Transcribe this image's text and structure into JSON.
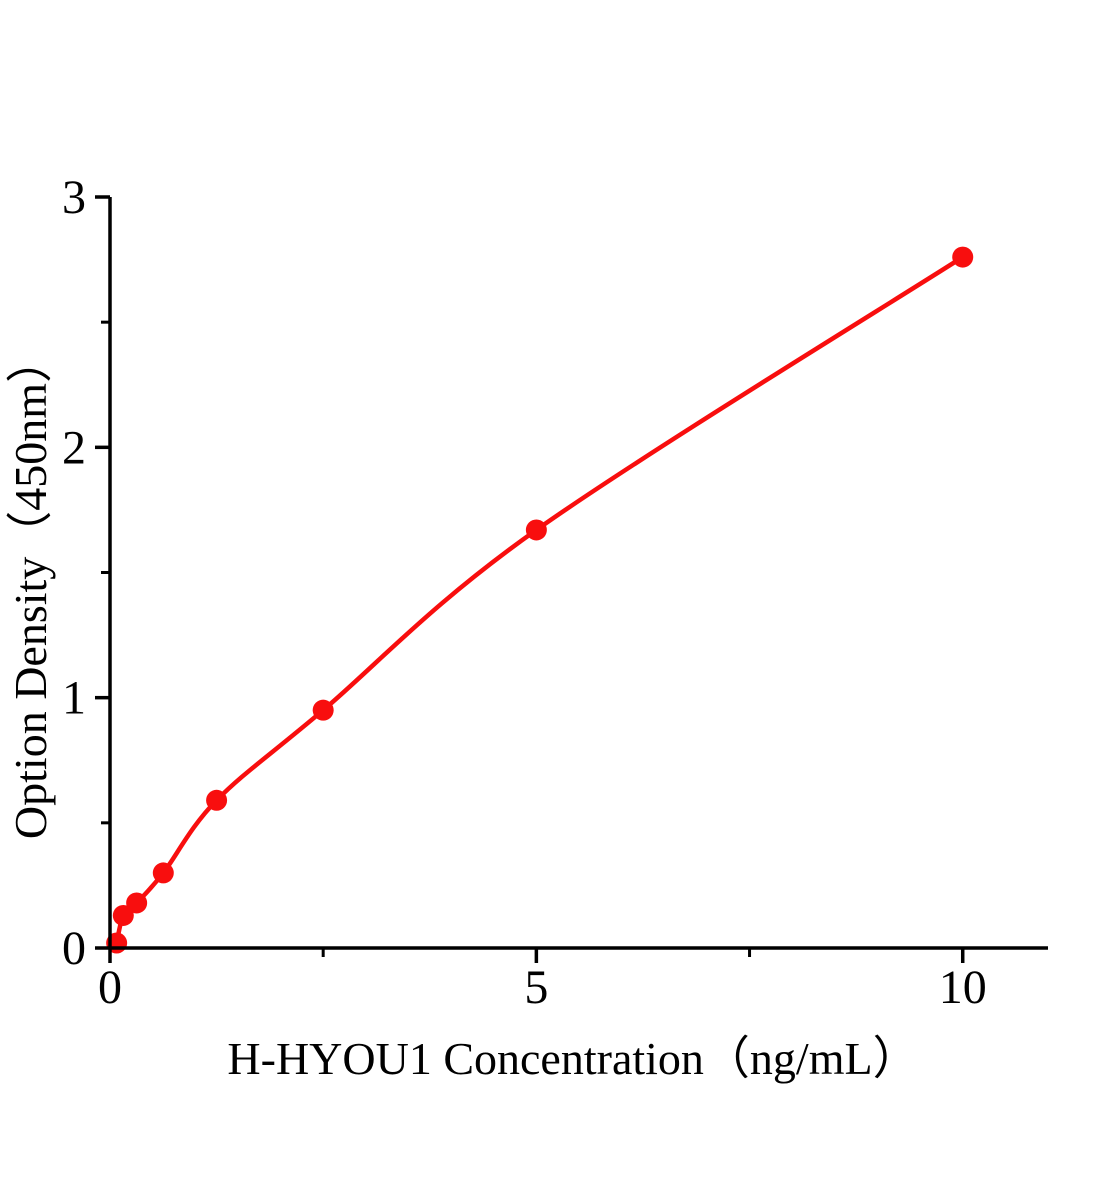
{
  "chart_data": {
    "type": "scatter",
    "subtype": "line-through-points-standard-curve",
    "title": "",
    "xlabel": "H-HYOU1 Concentration（ng/mL）",
    "ylabel": "Option Density（450nm）",
    "x": [
      0.078,
      0.156,
      0.3125,
      0.625,
      1.25,
      2.5,
      5,
      10
    ],
    "y": [
      0.02,
      0.13,
      0.18,
      0.3,
      0.59,
      0.95,
      1.67,
      2.76
    ],
    "xlim": [
      0,
      11
    ],
    "ylim": [
      0,
      3
    ],
    "x_major_ticks": [
      0,
      5,
      10
    ],
    "x_major_tick_labels": [
      "0",
      "5",
      "10"
    ],
    "x_minor_ticks": [
      2.5,
      7.5
    ],
    "y_major_ticks": [
      0,
      1,
      2,
      3
    ],
    "y_major_tick_labels": [
      "0",
      "1",
      "2",
      "3"
    ],
    "y_minor_ticks": [
      0.5,
      1.5,
      2.5
    ],
    "grid": false,
    "legend": false,
    "marker": "circle",
    "colors": {
      "curve": "#f80e0e",
      "marker": "#f80e0e",
      "axis": "#000000",
      "text": "#000000",
      "background": "#ffffff"
    }
  }
}
